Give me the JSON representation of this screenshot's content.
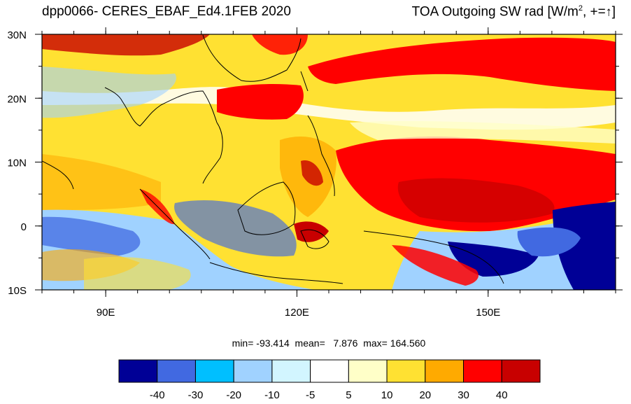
{
  "title_left": "dpp0066- CERES_EBAF_Ed4.1FEB 2020",
  "title_right": {
    "prefix": "TOA Outgoing SW rad [W/m",
    "sup": "2",
    "mid": ", +=",
    "arrow": "↑",
    "suffix": "]"
  },
  "map": {
    "projection": "cylindrical-equidistant",
    "lon_range": [
      80,
      170
    ],
    "lat_range": [
      -10,
      30
    ],
    "lat_ticks": [
      {
        "value": 30,
        "label": "30N"
      },
      {
        "value": 20,
        "label": "20N"
      },
      {
        "value": 10,
        "label": "10N"
      },
      {
        "value": 0,
        "label": "0"
      },
      {
        "value": -10,
        "label": "10S"
      }
    ],
    "lon_ticks": [
      {
        "value": 90,
        "label": "90E"
      },
      {
        "value": 120,
        "label": "120E"
      },
      {
        "value": 150,
        "label": "150E"
      }
    ],
    "minor_lon_step": 5,
    "minor_lat_step": 5
  },
  "stats_text": "min= -93.414  mean=   7.876  max= 164.560",
  "colorbar": {
    "colors": [
      "#000096",
      "#4169e1",
      "#00bfff",
      "#a0d2ff",
      "#d2f5ff",
      "#ffffff",
      "#ffffc8",
      "#ffe132",
      "#ffaa00",
      "#ff0000",
      "#c80000"
    ],
    "labels": [
      "-40",
      "-30",
      "-20",
      "-10",
      "-5",
      "5",
      "10",
      "20",
      "30",
      "40"
    ],
    "levels": [
      -40,
      -30,
      -20,
      -10,
      -5,
      5,
      10,
      20,
      30,
      40
    ]
  }
}
